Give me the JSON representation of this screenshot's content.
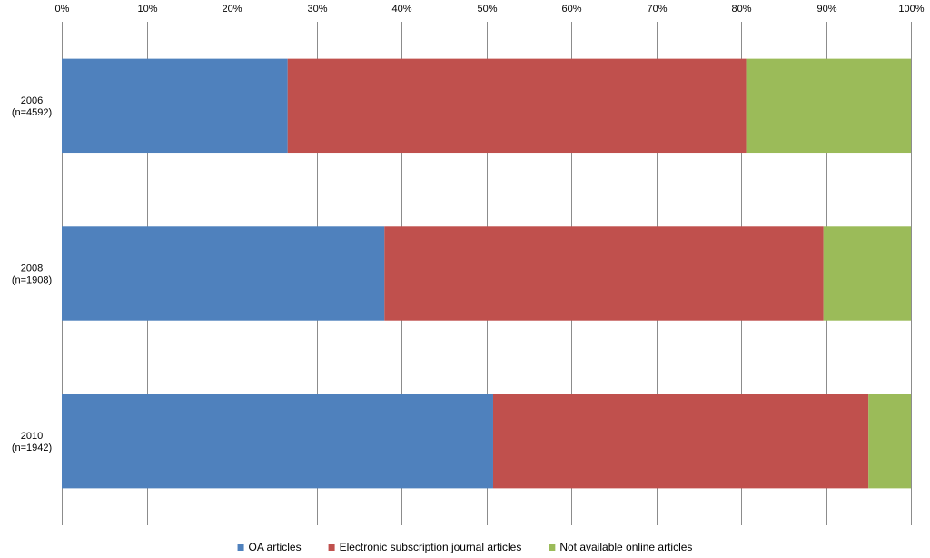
{
  "chart_data": {
    "type": "bar",
    "orientation": "horizontal",
    "stacked": "percent",
    "categories": [
      [
        "2006",
        "(n=4592)"
      ],
      [
        "2008",
        "(n=1908)"
      ],
      [
        "2010",
        "(n=1942)"
      ]
    ],
    "series": [
      {
        "name": "OA articles",
        "color": "#4f81bd",
        "values": [
          26.6,
          38.0,
          50.8
        ]
      },
      {
        "name": "Electronic subscription journal articles",
        "color": "#c0504d",
        "values": [
          54.0,
          51.7,
          44.2
        ]
      },
      {
        "name": "Not available online articles",
        "color": "#9bbb59",
        "values": [
          19.4,
          10.3,
          5.0
        ]
      }
    ],
    "x_ticks": [
      "0%",
      "10%",
      "20%",
      "30%",
      "40%",
      "50%",
      "60%",
      "70%",
      "80%",
      "90%",
      "100%"
    ],
    "xlim": [
      0,
      100
    ],
    "x_axis_position": "top",
    "grid": true,
    "legend_position": "bottom",
    "title": "",
    "xlabel": "",
    "ylabel": ""
  }
}
